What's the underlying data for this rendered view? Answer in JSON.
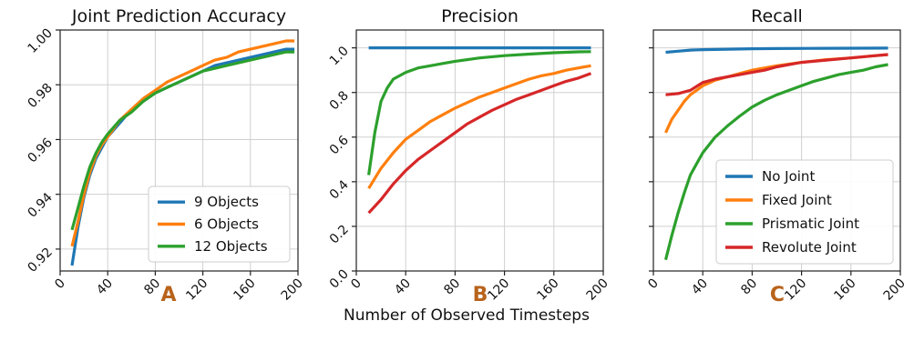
{
  "figure": {
    "xlabel": "Number of Observed Timesteps"
  },
  "colors": {
    "blue": "#1f77b4",
    "orange": "#ff7f0e",
    "green": "#2ca02c",
    "red": "#d62728",
    "panel_label": "#b8631c"
  },
  "chart_data": [
    {
      "type": "line",
      "panel_label": "A",
      "title": "Joint Prediction Accuracy",
      "xlim": [
        0,
        200
      ],
      "ylim": [
        0.912,
        1.0
      ],
      "xticks": [
        0,
        40,
        80,
        120,
        160,
        200
      ],
      "yticks": [
        0.92,
        0.94,
        0.96,
        0.98,
        1.0
      ],
      "ytick_labels": [
        "0.92",
        "0.94",
        "0.96",
        "0.98",
        "1.00"
      ],
      "grid": true,
      "legend": "bottom-right",
      "series": [
        {
          "name": "9 Objects",
          "color": "#1f77b4",
          "x": [
            10,
            15,
            20,
            25,
            30,
            35,
            40,
            50,
            60,
            70,
            80,
            90,
            100,
            110,
            120,
            130,
            140,
            150,
            160,
            170,
            180,
            190,
            197
          ],
          "y": [
            0.914,
            0.928,
            0.939,
            0.947,
            0.953,
            0.957,
            0.961,
            0.966,
            0.971,
            0.974,
            0.977,
            0.979,
            0.981,
            0.983,
            0.985,
            0.987,
            0.988,
            0.989,
            0.99,
            0.991,
            0.992,
            0.993,
            0.993
          ]
        },
        {
          "name": "6 Objects",
          "color": "#ff7f0e",
          "x": [
            10,
            15,
            20,
            25,
            30,
            35,
            40,
            50,
            60,
            70,
            80,
            90,
            100,
            110,
            120,
            130,
            140,
            150,
            160,
            170,
            180,
            190,
            197
          ],
          "y": [
            0.921,
            0.93,
            0.94,
            0.948,
            0.954,
            0.958,
            0.961,
            0.967,
            0.971,
            0.975,
            0.978,
            0.981,
            0.983,
            0.985,
            0.987,
            0.989,
            0.99,
            0.992,
            0.993,
            0.994,
            0.995,
            0.996,
            0.996
          ]
        },
        {
          "name": "12 Objects",
          "color": "#2ca02c",
          "x": [
            10,
            15,
            20,
            25,
            30,
            35,
            40,
            50,
            60,
            70,
            80,
            90,
            100,
            110,
            120,
            130,
            140,
            150,
            160,
            170,
            180,
            190,
            197
          ],
          "y": [
            0.927,
            0.935,
            0.943,
            0.95,
            0.955,
            0.959,
            0.962,
            0.967,
            0.97,
            0.974,
            0.977,
            0.979,
            0.981,
            0.983,
            0.985,
            0.986,
            0.987,
            0.988,
            0.989,
            0.99,
            0.991,
            0.992,
            0.992
          ]
        }
      ]
    },
    {
      "type": "line",
      "panel_label": "B",
      "title": "Precision",
      "xlim": [
        0,
        200
      ],
      "ylim": [
        0.0,
        1.08
      ],
      "xticks": [
        0,
        40,
        80,
        120,
        160,
        200
      ],
      "yticks": [
        0.0,
        0.2,
        0.4,
        0.6,
        0.8,
        1.0
      ],
      "ytick_labels": [
        "0.0",
        "0.2",
        "0.4",
        "0.6",
        "0.8",
        "1.0"
      ],
      "grid": true,
      "series": [
        {
          "name": "No Joint",
          "color": "#1f77b4",
          "x": [
            10,
            30,
            60,
            100,
            140,
            190
          ],
          "y": [
            1.0,
            1.0,
            1.0,
            1.0,
            1.0,
            1.0
          ]
        },
        {
          "name": "Fixed Joint",
          "color": "#ff7f0e",
          "x": [
            10,
            20,
            30,
            40,
            50,
            60,
            70,
            80,
            90,
            100,
            110,
            120,
            130,
            140,
            150,
            160,
            170,
            180,
            190
          ],
          "y": [
            0.37,
            0.46,
            0.53,
            0.59,
            0.63,
            0.67,
            0.7,
            0.73,
            0.755,
            0.78,
            0.8,
            0.82,
            0.84,
            0.86,
            0.875,
            0.885,
            0.9,
            0.91,
            0.92
          ]
        },
        {
          "name": "Prismatic Joint",
          "color": "#2ca02c",
          "x": [
            10,
            15,
            20,
            25,
            30,
            40,
            50,
            60,
            70,
            80,
            100,
            120,
            140,
            160,
            180,
            190
          ],
          "y": [
            0.43,
            0.62,
            0.76,
            0.82,
            0.86,
            0.89,
            0.91,
            0.92,
            0.93,
            0.94,
            0.955,
            0.965,
            0.972,
            0.978,
            0.982,
            0.983
          ]
        },
        {
          "name": "Revolute Joint",
          "color": "#d62728",
          "x": [
            10,
            20,
            30,
            40,
            50,
            60,
            70,
            80,
            90,
            100,
            110,
            120,
            130,
            140,
            150,
            160,
            170,
            180,
            190
          ],
          "y": [
            0.26,
            0.32,
            0.39,
            0.45,
            0.5,
            0.54,
            0.58,
            0.62,
            0.66,
            0.69,
            0.72,
            0.745,
            0.77,
            0.79,
            0.81,
            0.83,
            0.85,
            0.865,
            0.885
          ]
        }
      ]
    },
    {
      "type": "line",
      "panel_label": "C",
      "title": "Recall",
      "xlim": [
        0,
        200
      ],
      "ylim": [
        0.0,
        1.08
      ],
      "xticks": [
        0,
        40,
        80,
        120,
        160,
        200
      ],
      "yticks": [
        0.0,
        0.2,
        0.4,
        0.6,
        0.8,
        1.0
      ],
      "ytick_labels": [],
      "grid": true,
      "legend": "bottom-right",
      "series": [
        {
          "name": "No Joint",
          "color": "#1f77b4",
          "x": [
            10,
            20,
            30,
            40,
            60,
            80,
            100,
            140,
            190
          ],
          "y": [
            0.98,
            0.985,
            0.99,
            0.992,
            0.994,
            0.996,
            0.997,
            0.998,
            0.999
          ]
        },
        {
          "name": "Fixed Joint",
          "color": "#ff7f0e",
          "x": [
            10,
            15,
            20,
            25,
            30,
            35,
            40,
            50,
            60,
            70,
            80,
            90,
            100,
            120,
            140,
            160,
            180,
            190
          ],
          "y": [
            0.62,
            0.68,
            0.72,
            0.76,
            0.79,
            0.81,
            0.83,
            0.855,
            0.87,
            0.885,
            0.9,
            0.91,
            0.92,
            0.935,
            0.947,
            0.955,
            0.965,
            0.97
          ]
        },
        {
          "name": "Prismatic Joint",
          "color": "#2ca02c",
          "x": [
            10,
            15,
            20,
            25,
            30,
            35,
            40,
            50,
            60,
            70,
            80,
            90,
            100,
            110,
            120,
            130,
            140,
            150,
            160,
            170,
            180,
            190
          ],
          "y": [
            0.05,
            0.16,
            0.26,
            0.35,
            0.43,
            0.48,
            0.53,
            0.6,
            0.65,
            0.695,
            0.735,
            0.765,
            0.79,
            0.81,
            0.83,
            0.85,
            0.865,
            0.88,
            0.89,
            0.9,
            0.915,
            0.925
          ]
        },
        {
          "name": "Revolute Joint",
          "color": "#d62728",
          "x": [
            10,
            20,
            30,
            40,
            50,
            60,
            70,
            80,
            90,
            100,
            110,
            120,
            140,
            160,
            180,
            190
          ],
          "y": [
            0.79,
            0.795,
            0.81,
            0.845,
            0.86,
            0.87,
            0.88,
            0.89,
            0.9,
            0.915,
            0.925,
            0.935,
            0.945,
            0.955,
            0.965,
            0.97
          ]
        }
      ]
    }
  ]
}
